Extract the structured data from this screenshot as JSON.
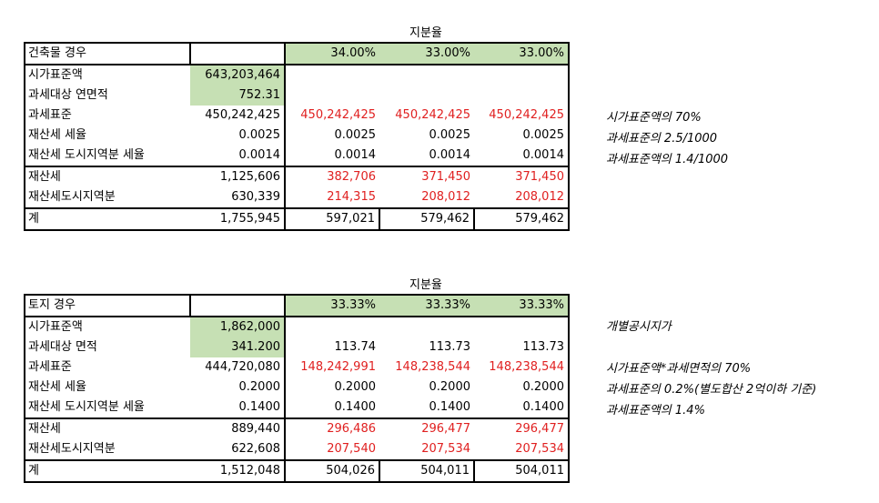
{
  "building": {
    "share_title": "지분율",
    "header": {
      "label": "건축물 경우",
      "shares": [
        "34.00%",
        "33.00%",
        "33.00%"
      ]
    },
    "rows": [
      {
        "label": "시가표준액",
        "total": "643,203,464",
        "vals": [
          "",
          "",
          ""
        ]
      },
      {
        "label": "과세대상 연면적",
        "total": "752.31",
        "vals": [
          "",
          "",
          ""
        ]
      },
      {
        "label": "과세표준",
        "total": "450,242,425",
        "vals": [
          "450,242,425",
          "450,242,425",
          "450,242,425"
        ]
      },
      {
        "label": "재산세 세율",
        "total": "0.0025",
        "vals": [
          "0.0025",
          "0.0025",
          "0.0025"
        ]
      },
      {
        "label": "재산세 도시지역분 세율",
        "total": "0.0014",
        "vals": [
          "0.0014",
          "0.0014",
          "0.0014"
        ]
      },
      {
        "label": "재산세",
        "total": "1,125,606",
        "vals": [
          "382,706",
          "371,450",
          "371,450"
        ]
      },
      {
        "label": "재산세도시지역분",
        "total": "630,339",
        "vals": [
          "214,315",
          "208,012",
          "208,012"
        ]
      },
      {
        "label": "계",
        "total": "1,755,945",
        "vals": [
          "597,021",
          "579,462",
          "579,462"
        ]
      }
    ],
    "notes": [
      "시가표준액의 70%",
      "과세표준의 2.5/1000",
      "과세표준액의 1.4/1000"
    ]
  },
  "land": {
    "share_title": "지분율",
    "header": {
      "label": "토지 경우",
      "shares": [
        "33.33%",
        "33.33%",
        "33.33%"
      ]
    },
    "rows": [
      {
        "label": "시가표준액",
        "total": "1,862,000",
        "vals": [
          "",
          "",
          ""
        ]
      },
      {
        "label": "과세대상 면적",
        "total": "341.200",
        "vals": [
          "113.74",
          "113.73",
          "113.73"
        ]
      },
      {
        "label": "과세표준",
        "total": "444,720,080",
        "vals": [
          "148,242,991",
          "148,238,544",
          "148,238,544"
        ]
      },
      {
        "label": "재산세 세율",
        "total": "0.2000",
        "vals": [
          "0.2000",
          "0.2000",
          "0.2000"
        ]
      },
      {
        "label": "재산세 도시지역분 세율",
        "total": "0.1400",
        "vals": [
          "0.1400",
          "0.1400",
          "0.1400"
        ]
      },
      {
        "label": "재산세",
        "total": "889,440",
        "vals": [
          "296,486",
          "296,477",
          "296,477"
        ]
      },
      {
        "label": "재산세도시지역분",
        "total": "622,608",
        "vals": [
          "207,540",
          "207,534",
          "207,534"
        ]
      },
      {
        "label": "계",
        "total": "1,512,048",
        "vals": [
          "504,026",
          "504,011",
          "504,011"
        ]
      }
    ],
    "notes": [
      "개별공시지가",
      "시가표준액*과세면적의 70%",
      "과세표준의 0.2%(별도합산 2억이하 기준)",
      "과세표준액의 1.4%"
    ]
  },
  "colors": {
    "green_fill": "#c6e0b4",
    "red_text": "#e02020",
    "border": "#000000"
  }
}
